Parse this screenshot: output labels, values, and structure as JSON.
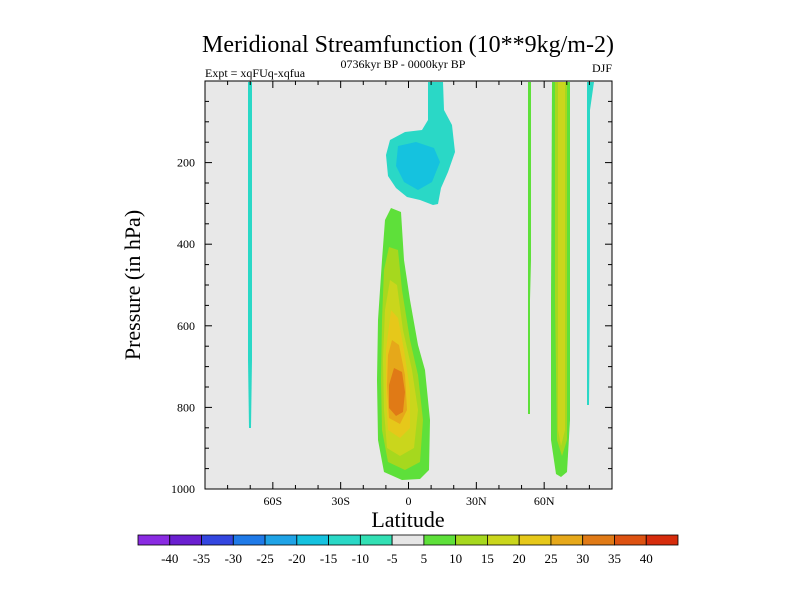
{
  "chart_data": {
    "type": "heatmap",
    "title": "Meridional Streamfunction (10**9kg/m-2)",
    "subtitle_left": "Expt = xqFUq-xqfua",
    "subtitle_center": "0736kyr BP - 0000kyr BP",
    "subtitle_right": "DJF",
    "xlabel": "Latitude",
    "ylabel": "Pressure (in hPa)",
    "xlim": [
      -90,
      90
    ],
    "ylim": [
      1000,
      0
    ],
    "x_ticks": [
      {
        "value": -60,
        "label": "60S"
      },
      {
        "value": -30,
        "label": "30S"
      },
      {
        "value": 0,
        "label": "0"
      },
      {
        "value": 30,
        "label": "30N"
      },
      {
        "value": 60,
        "label": "60N"
      }
    ],
    "y_ticks": [
      {
        "value": 200,
        "label": "200"
      },
      {
        "value": 400,
        "label": "400"
      },
      {
        "value": 600,
        "label": "600"
      },
      {
        "value": 800,
        "label": "800"
      },
      {
        "value": 1000,
        "label": "1000"
      }
    ],
    "colorbar": {
      "levels": [
        -40,
        -35,
        -30,
        -25,
        -20,
        -15,
        -10,
        -5,
        5,
        10,
        15,
        20,
        25,
        30,
        35,
        40
      ],
      "labels": [
        "-40",
        "-35",
        "-30",
        "-25",
        "-20",
        "-15",
        "-10",
        "-5",
        "5",
        "10",
        "15",
        "20",
        "25",
        "30",
        "35",
        "40"
      ],
      "colors": [
        "#8a2be2",
        "#6a1fd0",
        "#3346e0",
        "#1f7ae8",
        "#1fa3e6",
        "#15c2df",
        "#2ad8c6",
        "#32e0b4",
        "#e6e6e6",
        "#5ee03a",
        "#a6d81e",
        "#cad61c",
        "#e6c81a",
        "#e6a81a",
        "#e07a16",
        "#dd5211",
        "#d62c0c"
      ]
    },
    "features": [
      {
        "name": "positive-cell-equator",
        "description": "positive overturning cell centred near 5S, 750 hPa",
        "peak_value": 30
      },
      {
        "name": "negative-cell-upper",
        "description": "negative cell near 0-10N, 180 hPa",
        "peak_value": -10
      },
      {
        "name": "positive-band-60n",
        "description": "narrow positive band along 60N column",
        "peak_value": 25
      }
    ]
  }
}
